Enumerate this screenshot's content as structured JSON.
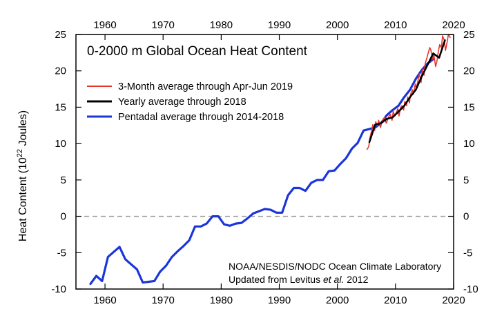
{
  "chart_data": {
    "type": "line",
    "title": "0-2000 m Global Ocean Heat Content",
    "ylabel": "Heat Content (10",
    "ylabel_exponent": "22",
    "ylabel_suffix": " Joules)",
    "xlabel": "",
    "xlim": [
      1955,
      2020
    ],
    "ylim": [
      -10,
      25
    ],
    "x_ticks": [
      1960,
      1970,
      1980,
      1990,
      2000,
      2010,
      2020
    ],
    "y_ticks": [
      -10,
      -5,
      0,
      5,
      10,
      15,
      20,
      25
    ],
    "zero_line": true,
    "legend_position": "top-left",
    "credit_line1": "NOAA/NESDIS/NODC Ocean Climate Laboratory",
    "credit_line2_prefix": "Updated from Levitus ",
    "credit_line2_italic": "et al.",
    "credit_line2_suffix": " 2012",
    "series": [
      {
        "name": "3-Month average through Apr-Jun 2019",
        "color": "#e8352e",
        "x": [
          2005.1,
          2005.4,
          2005.6,
          2005.9,
          2006.1,
          2006.4,
          2006.6,
          2006.9,
          2007.1,
          2007.4,
          2007.6,
          2007.9,
          2008.1,
          2008.4,
          2008.6,
          2008.9,
          2009.1,
          2009.4,
          2009.6,
          2009.9,
          2010.1,
          2010.4,
          2010.6,
          2010.9,
          2011.1,
          2011.4,
          2011.6,
          2011.9,
          2012.1,
          2012.4,
          2012.6,
          2012.9,
          2013.1,
          2013.4,
          2013.6,
          2013.9,
          2014.1,
          2014.4,
          2014.6,
          2014.9,
          2015.1,
          2015.4,
          2015.6,
          2015.9,
          2016.1,
          2016.4,
          2016.6,
          2016.9,
          2017.1,
          2017.4,
          2017.6,
          2017.9,
          2018.1,
          2018.4,
          2018.6,
          2018.9,
          2019.1,
          2019.4
        ],
        "values": [
          9.2,
          9.6,
          10.8,
          11.8,
          12.6,
          11.8,
          13.0,
          12.4,
          13.2,
          12.2,
          12.8,
          13.4,
          13.6,
          12.8,
          13.2,
          13.8,
          14.0,
          13.2,
          14.4,
          13.8,
          14.2,
          14.8,
          13.8,
          15.0,
          15.2,
          14.6,
          15.8,
          15.2,
          16.4,
          15.6,
          16.8,
          17.4,
          16.8,
          18.2,
          17.6,
          18.8,
          19.6,
          18.4,
          20.2,
          19.4,
          21.0,
          21.8,
          22.4,
          23.2,
          22.8,
          21.6,
          22.2,
          20.6,
          21.2,
          22.8,
          23.6,
          23.2,
          24.8,
          24.2,
          22.8,
          24.0,
          25.0,
          24.6
        ]
      },
      {
        "name": "Yearly average through 2018",
        "color": "#000000",
        "x": [
          2005.5,
          2006.5,
          2007.5,
          2008.5,
          2009.5,
          2010.5,
          2011.5,
          2012.5,
          2013.5,
          2014.5,
          2015.5,
          2016.5,
          2017.5,
          2018.5
        ],
        "values": [
          10.2,
          12.6,
          12.8,
          13.4,
          13.6,
          14.4,
          15.2,
          16.4,
          17.4,
          19.2,
          20.8,
          22.4,
          21.8,
          24.2
        ]
      },
      {
        "name": "Pentadal average through 2014-2018",
        "color": "#1a35d8",
        "x": [
          1957.5,
          1958.5,
          1959.5,
          1960.5,
          1961.5,
          1962.5,
          1963.5,
          1964.5,
          1965.5,
          1966.5,
          1967.5,
          1968.5,
          1969.5,
          1970.5,
          1971.5,
          1972.5,
          1973.5,
          1974.5,
          1975.5,
          1976.5,
          1977.5,
          1978.5,
          1979.5,
          1980.5,
          1981.5,
          1982.5,
          1983.5,
          1984.5,
          1985.5,
          1986.5,
          1987.5,
          1988.5,
          1989.5,
          1990.5,
          1991.5,
          1992.5,
          1993.5,
          1994.5,
          1995.5,
          1996.5,
          1997.5,
          1998.5,
          1999.5,
          2000.5,
          2001.5,
          2002.5,
          2003.5,
          2004.5,
          2005.5,
          2006.5,
          2007.5,
          2008.5,
          2009.5,
          2010.5,
          2011.5,
          2012.5,
          2013.5,
          2014.5,
          2015.5,
          2016.5
        ],
        "values": [
          -9.3,
          -8.2,
          -8.9,
          -5.6,
          -4.9,
          -4.2,
          -5.9,
          -6.6,
          -7.3,
          -9.1,
          -9.0,
          -8.9,
          -7.6,
          -6.8,
          -5.6,
          -4.8,
          -4.1,
          -3.3,
          -1.4,
          -1.4,
          -1.0,
          0.0,
          0.0,
          -1.1,
          -1.3,
          -1.0,
          -0.9,
          -0.3,
          0.4,
          0.7,
          1.0,
          0.9,
          0.5,
          0.5,
          2.9,
          3.9,
          3.9,
          3.5,
          4.6,
          5.0,
          5.0,
          6.2,
          6.3,
          7.2,
          8.0,
          9.3,
          10.1,
          11.8,
          12.0,
          12.2,
          12.8,
          13.9,
          14.6,
          15.2,
          16.4,
          17.4,
          18.9,
          20.1,
          21.0,
          21.6
        ]
      }
    ]
  }
}
